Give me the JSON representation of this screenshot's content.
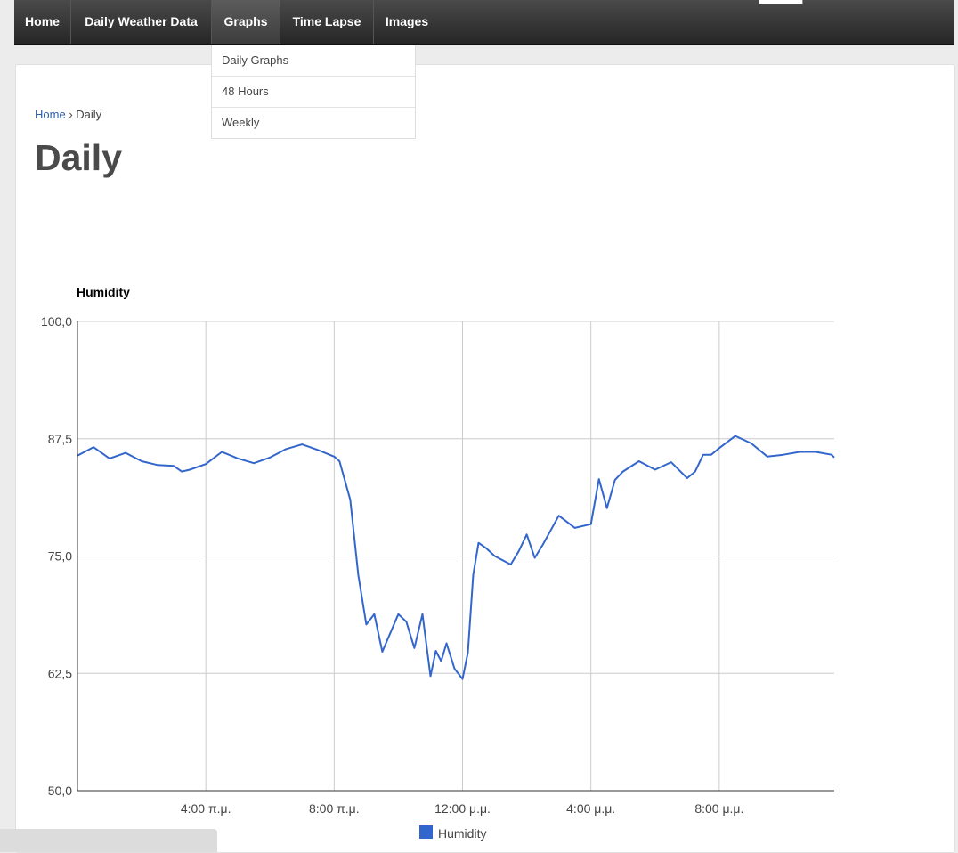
{
  "nav": {
    "items": [
      {
        "label": "Home"
      },
      {
        "label": "Daily Weather Data"
      },
      {
        "label": "Graphs"
      },
      {
        "label": "Time Lapse"
      },
      {
        "label": "Images"
      }
    ],
    "active_index": 2
  },
  "dropdown": {
    "items": [
      {
        "label": "Daily Graphs"
      },
      {
        "label": "48 Hours"
      },
      {
        "label": "Weekly"
      }
    ]
  },
  "breadcrumb": {
    "home": "Home",
    "separator": "›",
    "current": "Daily"
  },
  "page_title": "Daily",
  "colors": {
    "series": "#3366cc",
    "navbar": "#333333",
    "link": "#2e5fa8"
  },
  "chart_data": {
    "type": "line",
    "title": "Humidity",
    "xlabel": "",
    "ylabel": "",
    "ylim": [
      50,
      100
    ],
    "xlim": [
      "00:00",
      "23:35"
    ],
    "y_ticks": [
      "50,0",
      "62,5",
      "75,0",
      "87,5",
      "100,0"
    ],
    "x_ticks": [
      "4:00 π.μ.",
      "8:00 π.μ.",
      "12:00 μ.μ.",
      "4:00 μ.μ.",
      "8:00 μ.μ."
    ],
    "grid": true,
    "legend": "bottom",
    "series": [
      {
        "name": "Humidity",
        "x": [
          "00:00",
          "00:30",
          "01:00",
          "01:30",
          "02:00",
          "02:30",
          "03:00",
          "03:15",
          "03:30",
          "04:00",
          "04:30",
          "05:00",
          "05:30",
          "06:00",
          "06:30",
          "07:00",
          "07:30",
          "08:00",
          "08:10",
          "08:30",
          "08:45",
          "09:00",
          "09:15",
          "09:30",
          "10:00",
          "10:15",
          "10:30",
          "10:45",
          "11:00",
          "11:10",
          "11:20",
          "11:30",
          "11:45",
          "12:00",
          "12:10",
          "12:20",
          "12:30",
          "12:45",
          "13:00",
          "13:30",
          "13:45",
          "14:00",
          "14:15",
          "14:30",
          "15:00",
          "15:30",
          "16:00",
          "16:15",
          "16:30",
          "16:45",
          "17:00",
          "17:30",
          "18:00",
          "18:30",
          "19:00",
          "19:15",
          "19:30",
          "19:45",
          "20:00",
          "20:30",
          "21:00",
          "21:30",
          "22:00",
          "22:30",
          "23:00",
          "23:30",
          "23:35"
        ],
        "values": [
          85.7,
          86.6,
          85.4,
          86.0,
          85.1,
          84.7,
          84.6,
          84.0,
          84.2,
          84.8,
          86.1,
          85.4,
          84.9,
          85.5,
          86.4,
          86.9,
          86.3,
          85.6,
          85.1,
          81.0,
          73.0,
          67.7,
          68.8,
          64.8,
          68.8,
          68.0,
          65.2,
          68.8,
          62.2,
          64.9,
          63.8,
          65.7,
          63.0,
          61.9,
          64.7,
          73.0,
          76.4,
          75.8,
          75.0,
          74.1,
          75.5,
          77.3,
          74.8,
          76.2,
          79.3,
          78.0,
          78.4,
          83.2,
          80.1,
          83.1,
          84.0,
          85.1,
          84.2,
          85.0,
          83.3,
          84.0,
          85.8,
          85.8,
          86.5,
          87.8,
          87.0,
          85.6,
          85.8,
          86.1,
          86.1,
          85.8,
          85.5
        ]
      }
    ]
  }
}
